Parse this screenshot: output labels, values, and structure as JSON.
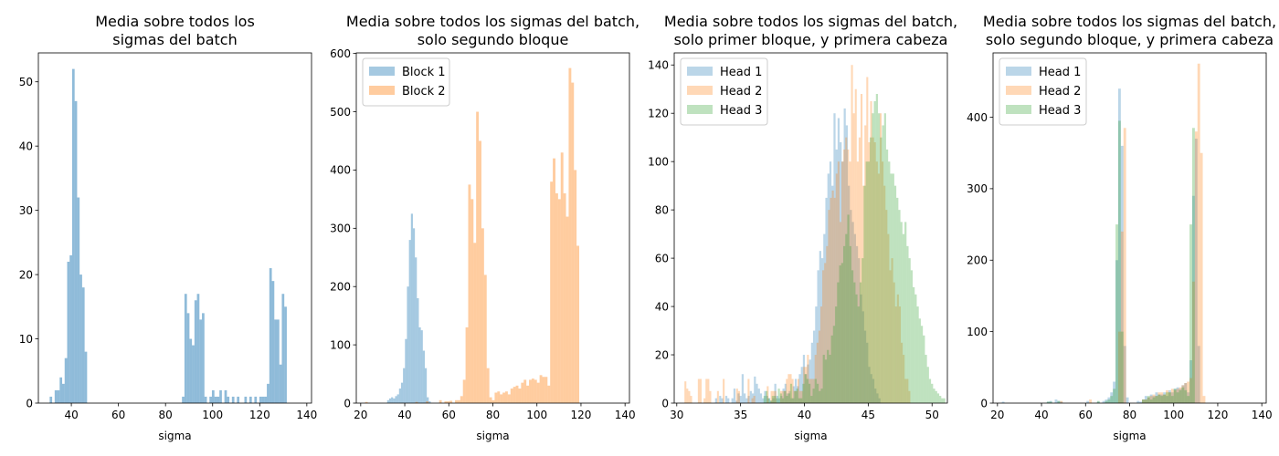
{
  "chart_data": [
    {
      "type": "histogram",
      "title": [
        "Media sobre todos los",
        "sigmas del batch"
      ],
      "xlabel": "sigma",
      "xlim": [
        26,
        142
      ],
      "ylim": [
        0,
        54.5
      ],
      "xticks": [
        40,
        60,
        80,
        100,
        120,
        140
      ],
      "yticks": [
        0,
        10,
        20,
        30,
        40,
        50
      ],
      "legend": null,
      "series": [
        {
          "name": "",
          "color": "#1f77b4",
          "alpha": 0.5,
          "bin_start": 30.8,
          "bin_width": 1.06,
          "counts": [
            1,
            0,
            2,
            2,
            4,
            3,
            7,
            22,
            23,
            52,
            47,
            32,
            20,
            18,
            8,
            0,
            0,
            0,
            0,
            0,
            0,
            0,
            0,
            0,
            0,
            0,
            0,
            0,
            0,
            0,
            0,
            0,
            0,
            0,
            0,
            0,
            0,
            0,
            0,
            0,
            0,
            0,
            0,
            0,
            0,
            0,
            0,
            0,
            0,
            0,
            0,
            0,
            0,
            1,
            17,
            14,
            10,
            9,
            16,
            17,
            13,
            14,
            1,
            0,
            1,
            2,
            1,
            1,
            2,
            0,
            2,
            1,
            0,
            1,
            0,
            1,
            0,
            0,
            1,
            0,
            1,
            0,
            1,
            0,
            1,
            1,
            1,
            3,
            21,
            19,
            13,
            13,
            6,
            17,
            15
          ]
        }
      ]
    },
    {
      "type": "histogram",
      "title": [
        "Media sobre todos los sigmas del batch,",
        "solo segundo bloque"
      ],
      "xlabel": "sigma",
      "xlim": [
        18,
        142
      ],
      "ylim": [
        0,
        601
      ],
      "xticks": [
        20,
        40,
        60,
        80,
        100,
        120,
        140
      ],
      "yticks": [
        0,
        100,
        200,
        300,
        400,
        500,
        600
      ],
      "legend": {
        "position": "top-left",
        "entries": [
          "Block 1",
          "Block 2"
        ]
      },
      "series": [
        {
          "name": "Block 1",
          "color": "#1f77b4",
          "alpha": 0.4,
          "bin_start": 32.0,
          "bin_width": 0.9,
          "counts": [
            5,
            8,
            10,
            8,
            12,
            15,
            25,
            35,
            60,
            110,
            200,
            280,
            325,
            300,
            250,
            180,
            130,
            125,
            90,
            60,
            10,
            3
          ]
        },
        {
          "name": "Block 2",
          "color": "#ff7f0e",
          "alpha": 0.4,
          "bin_start": 22.0,
          "bin_width": 1.2,
          "counts": [
            2,
            0,
            0,
            0,
            0,
            0,
            0,
            0,
            0,
            0,
            0,
            0,
            0,
            0,
            0,
            0,
            0,
            0,
            0,
            2,
            0,
            0,
            0,
            3,
            0,
            0,
            0,
            0,
            5,
            0,
            3,
            3,
            4,
            0,
            5,
            5,
            12,
            40,
            130,
            375,
            350,
            275,
            500,
            450,
            300,
            220,
            60,
            10,
            5,
            18,
            20,
            15,
            18,
            20,
            15,
            25,
            28,
            30,
            25,
            35,
            40,
            30,
            40,
            42,
            40,
            35,
            48,
            45,
            45,
            30,
            380,
            420,
            360,
            350,
            430,
            360,
            320,
            575,
            550,
            400,
            270
          ]
        }
      ]
    },
    {
      "type": "histogram",
      "title": [
        "Media sobre todos los sigmas del batch,",
        "solo primer bloque, y primera cabeza"
      ],
      "xlabel": "sigma",
      "xlim": [
        29.8,
        51.2
      ],
      "ylim": [
        0,
        145
      ],
      "xticks": [
        30,
        35,
        40,
        45,
        50
      ],
      "yticks": [
        0,
        20,
        40,
        60,
        80,
        100,
        120,
        140
      ],
      "legend": {
        "position": "top-left",
        "entries": [
          "Head 1",
          "Head 2",
          "Head 3"
        ]
      },
      "series": [
        {
          "name": "Head 1",
          "color": "#1f77b4",
          "alpha": 0.3,
          "bin_start": 33.0,
          "bin_width": 0.16,
          "counts": [
            2,
            0,
            3,
            2,
            0,
            3,
            2,
            0,
            2,
            6,
            1,
            4,
            3,
            12,
            4,
            2,
            3,
            5,
            4,
            11,
            8,
            6,
            4,
            2,
            5,
            3,
            2,
            1,
            2,
            8,
            3,
            2,
            3,
            6,
            8,
            4,
            5,
            2,
            7,
            10,
            7,
            12,
            15,
            20,
            12,
            16,
            18,
            25,
            30,
            40,
            55,
            63,
            60,
            70,
            85,
            95,
            100,
            90,
            120,
            105,
            118,
            108,
            100,
            122,
            115,
            90,
            80,
            75,
            70,
            65,
            60,
            45,
            38,
            30,
            25,
            15,
            12,
            10,
            6,
            4,
            2
          ]
        },
        {
          "name": "Head 2",
          "color": "#ff7f0e",
          "alpha": 0.3,
          "bin_start": 30.6,
          "bin_width": 0.15,
          "counts": [
            9,
            6,
            5,
            3,
            0,
            0,
            0,
            10,
            10,
            0,
            2,
            10,
            10,
            5,
            0,
            0,
            0,
            5,
            0,
            0,
            10,
            0,
            0,
            0,
            0,
            0,
            0,
            6,
            5,
            0,
            0,
            0,
            0,
            10,
            0,
            2,
            3,
            0,
            0,
            0,
            0,
            0,
            0,
            7,
            0,
            5,
            5,
            5,
            0,
            0,
            5,
            5,
            5,
            10,
            12,
            12,
            10,
            5,
            5,
            10,
            5,
            5,
            15,
            15,
            20,
            10,
            10,
            10,
            20,
            25,
            30,
            40,
            55,
            58,
            65,
            80,
            85,
            88,
            85,
            95,
            100,
            75,
            100,
            105,
            110,
            105,
            100,
            140,
            120,
            130,
            100,
            110,
            128,
            90,
            115,
            135,
            108,
            125,
            110,
            108,
            100,
            95,
            120,
            100,
            90,
            80,
            70,
            55,
            60,
            50,
            40,
            45,
            40,
            25,
            20,
            10,
            10,
            5
          ]
        },
        {
          "name": "Head 3",
          "color": "#2ca02c",
          "alpha": 0.3,
          "bin_start": 36.8,
          "bin_width": 0.16,
          "counts": [
            3,
            5,
            2,
            1,
            3,
            3,
            2,
            6,
            4,
            2,
            5,
            3,
            4,
            8,
            2,
            5,
            6,
            2,
            2,
            8,
            12,
            10,
            8,
            3,
            6,
            10,
            8,
            5,
            6,
            20,
            18,
            22,
            20,
            28,
            32,
            40,
            50,
            57,
            58,
            65,
            70,
            78,
            65,
            55,
            50,
            45,
            40,
            50,
            60,
            90,
            100,
            100,
            110,
            120,
            125,
            128,
            120,
            110,
            115,
            120,
            105,
            100,
            95,
            95,
            90,
            85,
            80,
            75,
            70,
            75,
            65,
            60,
            55,
            48,
            45,
            40,
            35,
            32,
            28,
            20,
            15,
            10,
            8,
            6,
            5,
            4,
            3,
            2,
            2
          ]
        }
      ]
    },
    {
      "type": "histogram",
      "title": [
        "Media sobre todos los sigmas del batch,",
        "solo segundo bloque, y primera cabeza"
      ],
      "xlabel": "sigma",
      "xlim": [
        18,
        142
      ],
      "ylim": [
        0,
        490
      ],
      "xticks": [
        20,
        40,
        60,
        80,
        100,
        120,
        140
      ],
      "yticks": [
        0,
        100,
        200,
        300,
        400
      ],
      "legend": {
        "position": "top-left",
        "entries": [
          "Head 1",
          "Head 2",
          "Head 3"
        ]
      },
      "series": [
        {
          "name": "Head 1",
          "color": "#1f77b4",
          "alpha": 0.3,
          "bin_start": 22.0,
          "bin_width": 1.2,
          "counts": [
            2,
            0,
            0,
            0,
            0,
            0,
            0,
            0,
            0,
            0,
            0,
            0,
            0,
            0,
            0,
            0,
            0,
            2,
            3,
            0,
            5,
            3,
            2,
            0,
            0,
            0,
            0,
            0,
            0,
            0,
            0,
            0,
            3,
            0,
            0,
            0,
            2,
            0,
            3,
            5,
            8,
            15,
            30,
            200,
            440,
            360,
            80,
            8,
            0,
            0,
            0,
            3,
            2,
            5,
            10,
            8,
            12,
            10,
            15,
            12,
            12,
            15,
            10,
            18,
            15,
            20,
            22,
            20,
            25,
            28,
            15,
            60,
            290,
            370,
            80,
            0
          ]
        },
        {
          "name": "Head 2",
          "color": "#ff7f0e",
          "alpha": 0.3,
          "bin_start": 22.0,
          "bin_width": 1.2,
          "counts": [
            0,
            0,
            0,
            0,
            0,
            0,
            0,
            0,
            0,
            0,
            0,
            0,
            0,
            0,
            0,
            0,
            0,
            0,
            0,
            0,
            0,
            0,
            3,
            0,
            0,
            0,
            0,
            0,
            0,
            0,
            0,
            0,
            0,
            5,
            0,
            0,
            0,
            0,
            0,
            0,
            0,
            0,
            0,
            0,
            100,
            240,
            385,
            0,
            0,
            0,
            0,
            0,
            0,
            5,
            5,
            8,
            10,
            12,
            10,
            15,
            15,
            12,
            18,
            15,
            20,
            18,
            20,
            22,
            25,
            28,
            30,
            35,
            170,
            380,
            475,
            350,
            10
          ]
        },
        {
          "name": "Head 3",
          "color": "#2ca02c",
          "alpha": 0.3,
          "bin_start": 22.0,
          "bin_width": 1.2,
          "counts": [
            0,
            0,
            0,
            0,
            0,
            0,
            0,
            0,
            0,
            0,
            0,
            0,
            0,
            0,
            0,
            0,
            0,
            2,
            2,
            0,
            0,
            3,
            0,
            0,
            0,
            0,
            0,
            0,
            0,
            0,
            0,
            0,
            0,
            0,
            0,
            0,
            3,
            0,
            0,
            3,
            5,
            10,
            20,
            250,
            395,
            100,
            0,
            0,
            0,
            0,
            0,
            0,
            0,
            5,
            5,
            10,
            5,
            8,
            10,
            12,
            10,
            12,
            15,
            15,
            10,
            20,
            15,
            18,
            22,
            18,
            10,
            250,
            385,
            0,
            0,
            0,
            0
          ]
        }
      ]
    }
  ]
}
